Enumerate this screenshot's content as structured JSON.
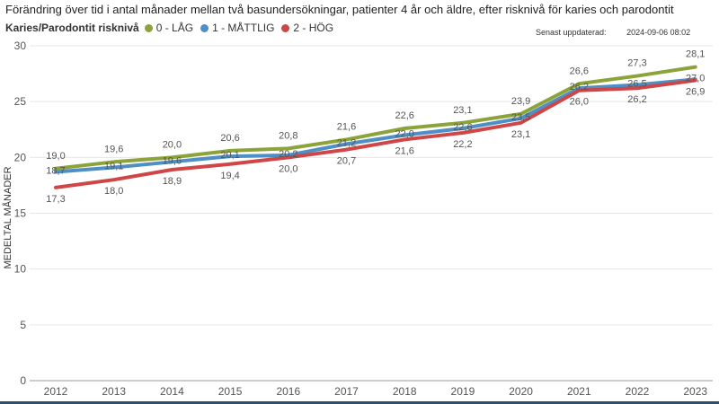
{
  "title": "Förändring över tid i antal månader mellan två basundersökningar, patienter 4 år och äldre, efter risknivå för karies och parodontit",
  "legend": {
    "title": "Karies/Parodontit risknivå",
    "items": [
      {
        "label": "0 - LÅG",
        "color": "#8ca33a"
      },
      {
        "label": "1 - MÅTTLIG",
        "color": "#4e8fc6"
      },
      {
        "label": "2 - HÖG",
        "color": "#d04545"
      }
    ]
  },
  "updated": {
    "label": "Senast uppdaterad:",
    "timestamp": "2024-09-06 08:02"
  },
  "chart_data": {
    "type": "line",
    "title": "Förändring över tid i antal månader mellan två basundersökningar, patienter 4 år och äldre, efter risknivå för karies och parodontit",
    "xlabel": "",
    "ylabel": "MEDELTAL MÅNADER",
    "x": [
      "2012",
      "2013",
      "2014",
      "2015",
      "2016",
      "2017",
      "2018",
      "2019",
      "2020",
      "2021",
      "2022",
      "2023"
    ],
    "ylim": [
      0,
      30
    ],
    "yticks": [
      0,
      5,
      10,
      15,
      20,
      25,
      30
    ],
    "grid": true,
    "legend_position": "top-left",
    "series": [
      {
        "name": "0 - LÅG",
        "color": "#8ca33a",
        "values": [
          19.0,
          19.6,
          20.0,
          20.6,
          20.8,
          21.6,
          22.6,
          23.1,
          23.9,
          26.6,
          27.3,
          28.1
        ],
        "labels": [
          "19,0",
          "19,6",
          "20,0",
          "20,6",
          "20,8",
          "21,6",
          "22,6",
          "23,1",
          "23,9",
          "26,6",
          "27,3",
          "28,1"
        ]
      },
      {
        "name": "1 - MÅTTLIG",
        "color": "#4e8fc6",
        "values": [
          18.7,
          19.1,
          19.6,
          20.1,
          20.2,
          21.2,
          22.0,
          22.6,
          23.5,
          26.2,
          26.5,
          27.0
        ],
        "labels": [
          "18,7",
          "19,1",
          "19,6",
          "20,1",
          "20,2",
          "21,2",
          "22,0",
          "22,6",
          "23,5",
          "26,2",
          "26,5",
          "27,0"
        ]
      },
      {
        "name": "2 - HÖG",
        "color": "#d04545",
        "values": [
          17.3,
          18.0,
          18.9,
          19.4,
          20.0,
          20.7,
          21.6,
          22.2,
          23.1,
          26.0,
          26.2,
          26.9
        ],
        "labels": [
          "17,3",
          "18,0",
          "18,9",
          "19,4",
          "20,0",
          "20,7",
          "21,6",
          "22,2",
          "23,1",
          "26,0",
          "26,2",
          "26,9"
        ]
      }
    ]
  }
}
